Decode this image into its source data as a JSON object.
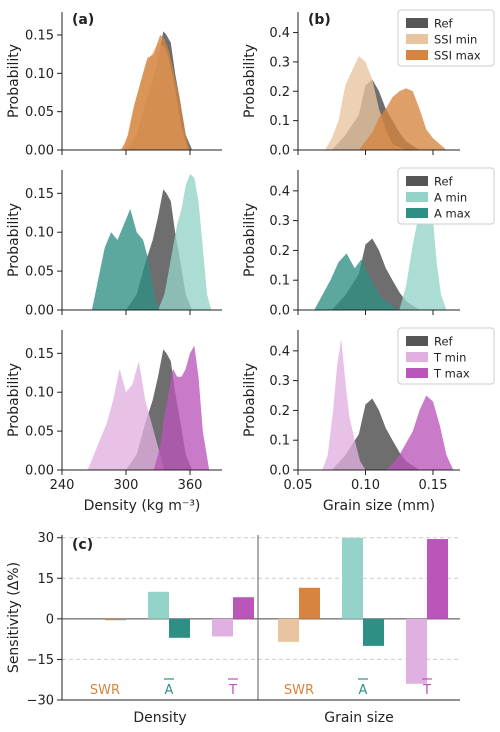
{
  "chart_data": [
    {
      "type": "area",
      "panel_label": "(a)",
      "xlabel": "",
      "ylabel": "Probability",
      "xlim": [
        240,
        390
      ],
      "ylim": [
        0,
        0.18
      ],
      "yticks": [
        "0.00",
        "0.05",
        "0.10",
        "0.15"
      ],
      "series": [
        {
          "name": "Ref",
          "color": "#555555",
          "x": [
            300,
            310,
            318,
            325,
            330,
            335,
            338,
            342,
            346,
            350,
            356,
            362
          ],
          "y": [
            0,
            0.02,
            0.06,
            0.09,
            0.12,
            0.155,
            0.15,
            0.14,
            0.1,
            0.07,
            0.02,
            0
          ]
        },
        {
          "name": "SSI min",
          "color": "#e8c4a0",
          "x": [
            294,
            300,
            306,
            312,
            318,
            324,
            330,
            336,
            340,
            346,
            352,
            358
          ],
          "y": [
            0,
            0.01,
            0.05,
            0.08,
            0.11,
            0.125,
            0.14,
            0.135,
            0.12,
            0.08,
            0.03,
            0
          ]
        },
        {
          "name": "SSI max",
          "color": "#d6843f",
          "x": [
            296,
            302,
            308,
            314,
            320,
            326,
            332,
            336,
            340,
            345,
            350,
            356,
            360
          ],
          "y": [
            0,
            0.02,
            0.06,
            0.09,
            0.12,
            0.125,
            0.15,
            0.145,
            0.13,
            0.1,
            0.07,
            0.02,
            0
          ]
        }
      ]
    },
    {
      "type": "area",
      "panel_label": "(b)",
      "xlabel": "",
      "ylabel": "Probability",
      "xlim": [
        0.05,
        0.17
      ],
      "ylim": [
        0,
        0.47
      ],
      "yticks": [
        "0.0",
        "0.1",
        "0.2",
        "0.3",
        "0.4"
      ],
      "legend": [
        "Ref",
        "SSI min",
        "SSI max"
      ],
      "series": [
        {
          "name": "Ref",
          "color": "#555555",
          "x": [
            0.075,
            0.085,
            0.095,
            0.1,
            0.105,
            0.11,
            0.115,
            0.12,
            0.125,
            0.13,
            0.14
          ],
          "y": [
            0,
            0.05,
            0.12,
            0.22,
            0.24,
            0.2,
            0.14,
            0.1,
            0.06,
            0.03,
            0
          ]
        },
        {
          "name": "SSI min",
          "color": "#e8c4a0",
          "x": [
            0.07,
            0.075,
            0.08,
            0.085,
            0.09,
            0.095,
            0.1,
            0.105,
            0.11,
            0.115,
            0.12,
            0.13
          ],
          "y": [
            0,
            0.04,
            0.1,
            0.22,
            0.27,
            0.32,
            0.3,
            0.24,
            0.14,
            0.07,
            0.02,
            0
          ]
        },
        {
          "name": "SSI max",
          "color": "#d6843f",
          "x": [
            0.095,
            0.1,
            0.105,
            0.11,
            0.115,
            0.12,
            0.125,
            0.13,
            0.135,
            0.14,
            0.145,
            0.15,
            0.155,
            0.16
          ],
          "y": [
            0,
            0.03,
            0.06,
            0.11,
            0.14,
            0.18,
            0.2,
            0.21,
            0.2,
            0.14,
            0.07,
            0.04,
            0.02,
            0
          ]
        }
      ]
    },
    {
      "type": "area",
      "panel_label": "",
      "xlabel": "",
      "ylabel": "Probability",
      "xlim": [
        240,
        390
      ],
      "ylim": [
        0,
        0.18
      ],
      "yticks": [
        "0.00",
        "0.05",
        "0.10",
        "0.15"
      ],
      "series": [
        {
          "name": "Ref",
          "color": "#555555",
          "x": [
            300,
            310,
            318,
            325,
            330,
            335,
            338,
            342,
            346,
            350,
            356,
            362
          ],
          "y": [
            0,
            0.02,
            0.06,
            0.09,
            0.12,
            0.155,
            0.15,
            0.14,
            0.1,
            0.07,
            0.02,
            0
          ]
        },
        {
          "name": "A min",
          "color": "#93d3c8",
          "x": [
            330,
            336,
            340,
            344,
            348,
            352,
            356,
            360,
            364,
            368,
            372,
            376,
            380
          ],
          "y": [
            0,
            0.02,
            0.05,
            0.08,
            0.11,
            0.13,
            0.16,
            0.175,
            0.17,
            0.14,
            0.08,
            0.02,
            0
          ]
        },
        {
          "name": "A max",
          "color": "#2e8f84",
          "x": [
            268,
            274,
            280,
            286,
            292,
            298,
            304,
            310,
            316,
            320,
            324,
            328,
            332
          ],
          "y": [
            0,
            0.04,
            0.08,
            0.1,
            0.09,
            0.11,
            0.13,
            0.1,
            0.09,
            0.07,
            0.04,
            0.01,
            0
          ]
        }
      ]
    },
    {
      "type": "area",
      "panel_label": "",
      "xlabel": "",
      "ylabel": "Probability",
      "xlim": [
        0.05,
        0.17
      ],
      "ylim": [
        0,
        0.47
      ],
      "yticks": [
        "0.0",
        "0.1",
        "0.2",
        "0.3",
        "0.4"
      ],
      "legend": [
        "Ref",
        "A min",
        "A max"
      ],
      "series": [
        {
          "name": "Ref",
          "color": "#555555",
          "x": [
            0.075,
            0.085,
            0.095,
            0.1,
            0.105,
            0.11,
            0.115,
            0.12,
            0.125,
            0.13,
            0.14
          ],
          "y": [
            0,
            0.05,
            0.12,
            0.22,
            0.24,
            0.2,
            0.14,
            0.1,
            0.06,
            0.03,
            0
          ]
        },
        {
          "name": "A min",
          "color": "#93d3c8",
          "x": [
            0.125,
            0.13,
            0.135,
            0.14,
            0.143,
            0.146,
            0.15,
            0.153,
            0.156,
            0.16
          ],
          "y": [
            0,
            0.08,
            0.22,
            0.33,
            0.38,
            0.43,
            0.3,
            0.15,
            0.05,
            0
          ]
        },
        {
          "name": "A max",
          "color": "#2e8f84",
          "x": [
            0.062,
            0.068,
            0.074,
            0.08,
            0.086,
            0.092,
            0.097,
            0.102,
            0.107,
            0.112,
            0.118,
            0.125
          ],
          "y": [
            0,
            0.05,
            0.1,
            0.16,
            0.19,
            0.14,
            0.17,
            0.12,
            0.08,
            0.04,
            0.02,
            0
          ]
        }
      ]
    },
    {
      "type": "area",
      "panel_label": "",
      "xlabel": "Density (kg m⁻³)",
      "ylabel": "Probability",
      "xlim": [
        240,
        390
      ],
      "ylim": [
        0,
        0.18
      ],
      "xticks": [
        "240",
        "300",
        "360"
      ],
      "yticks": [
        "0.00",
        "0.05",
        "0.10",
        "0.15"
      ],
      "series": [
        {
          "name": "Ref",
          "color": "#555555",
          "x": [
            300,
            310,
            318,
            325,
            330,
            335,
            338,
            342,
            346,
            350,
            356,
            362
          ],
          "y": [
            0,
            0.02,
            0.06,
            0.09,
            0.12,
            0.155,
            0.15,
            0.14,
            0.1,
            0.07,
            0.02,
            0
          ]
        },
        {
          "name": "T min",
          "color": "#e0b0e0",
          "x": [
            264,
            270,
            276,
            282,
            288,
            294,
            300,
            306,
            312,
            318,
            324,
            330,
            336
          ],
          "y": [
            0,
            0.02,
            0.04,
            0.06,
            0.09,
            0.13,
            0.1,
            0.11,
            0.14,
            0.09,
            0.06,
            0.03,
            0
          ]
        },
        {
          "name": "T max",
          "color": "#ba55ba",
          "x": [
            326,
            332,
            336,
            340,
            344,
            348,
            352,
            356,
            360,
            364,
            368,
            372,
            378
          ],
          "y": [
            0,
            0.03,
            0.07,
            0.1,
            0.13,
            0.12,
            0.12,
            0.13,
            0.15,
            0.16,
            0.12,
            0.05,
            0
          ]
        }
      ]
    },
    {
      "type": "area",
      "panel_label": "",
      "xlabel": "Grain size (mm)",
      "ylabel": "Probability",
      "xlim": [
        0.05,
        0.17
      ],
      "ylim": [
        0,
        0.47
      ],
      "xticks": [
        "0.05",
        "0.10",
        "0.15"
      ],
      "yticks": [
        "0.0",
        "0.1",
        "0.2",
        "0.3",
        "0.4"
      ],
      "legend": [
        "Ref",
        "T min",
        "T max"
      ],
      "series": [
        {
          "name": "Ref",
          "color": "#555555",
          "x": [
            0.075,
            0.085,
            0.095,
            0.1,
            0.105,
            0.11,
            0.115,
            0.12,
            0.125,
            0.13,
            0.14
          ],
          "y": [
            0,
            0.05,
            0.12,
            0.22,
            0.24,
            0.2,
            0.14,
            0.1,
            0.06,
            0.03,
            0
          ]
        },
        {
          "name": "T min",
          "color": "#e0b0e0",
          "x": [
            0.068,
            0.072,
            0.076,
            0.079,
            0.082,
            0.085,
            0.088,
            0.092,
            0.096,
            0.1
          ],
          "y": [
            0,
            0.05,
            0.2,
            0.35,
            0.44,
            0.3,
            0.18,
            0.1,
            0.03,
            0
          ]
        },
        {
          "name": "T max",
          "color": "#ba55ba",
          "x": [
            0.115,
            0.12,
            0.125,
            0.13,
            0.135,
            0.14,
            0.145,
            0.15,
            0.155,
            0.16,
            0.165
          ],
          "y": [
            0,
            0.02,
            0.05,
            0.09,
            0.13,
            0.2,
            0.25,
            0.23,
            0.15,
            0.05,
            0
          ]
        }
      ]
    },
    {
      "type": "bar",
      "panel_label": "(c)",
      "xlabel": "",
      "ylabel": "Sensitivity (Δ%)",
      "ylim": [
        -30,
        31
      ],
      "yticks": [
        "30",
        "15",
        "0",
        "−15",
        "−30"
      ],
      "groups": [
        "Density",
        "Grain size"
      ],
      "group_labels": [
        {
          "text": "SWR",
          "color": "#d6843f"
        },
        {
          "text": "A",
          "color": "#2e8f84"
        },
        {
          "text": "T",
          "color": "#ba55ba"
        }
      ],
      "bars": [
        {
          "group": "Density",
          "param": "SWR",
          "kind": "min",
          "value": 0,
          "color": "#e8c4a0"
        },
        {
          "group": "Density",
          "param": "SWR",
          "kind": "max",
          "value": -0.5,
          "color": "#d6843f"
        },
        {
          "group": "Density",
          "param": "A",
          "kind": "min",
          "value": 10,
          "color": "#93d3c8"
        },
        {
          "group": "Density",
          "param": "A",
          "kind": "max",
          "value": -7,
          "color": "#2e8f84"
        },
        {
          "group": "Density",
          "param": "T",
          "kind": "min",
          "value": -6.5,
          "color": "#e0b0e0"
        },
        {
          "group": "Density",
          "param": "T",
          "kind": "max",
          "value": 8,
          "color": "#ba55ba"
        },
        {
          "group": "Grain size",
          "param": "SWR",
          "kind": "min",
          "value": -8.5,
          "color": "#e8c4a0"
        },
        {
          "group": "Grain size",
          "param": "SWR",
          "kind": "max",
          "value": 11.5,
          "color": "#d6843f"
        },
        {
          "group": "Grain size",
          "param": "A",
          "kind": "min",
          "value": 30,
          "color": "#93d3c8"
        },
        {
          "group": "Grain size",
          "param": "A",
          "kind": "max",
          "value": -10,
          "color": "#2e8f84"
        },
        {
          "group": "Grain size",
          "param": "T",
          "kind": "min",
          "value": -24,
          "color": "#e0b0e0"
        },
        {
          "group": "Grain size",
          "param": "T",
          "kind": "max",
          "value": 29.5,
          "color": "#ba55ba"
        }
      ]
    }
  ]
}
